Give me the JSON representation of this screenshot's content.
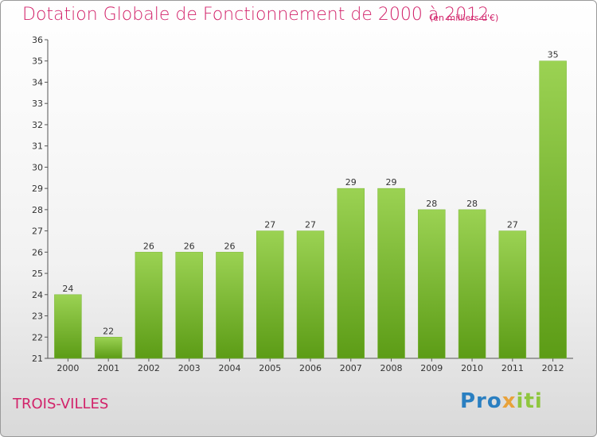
{
  "title": "Dotation Globale de Fonctionnement de 2000 à 2012",
  "subtitle": "(en milliers d'€)",
  "place": "TROIS-VILLES",
  "logo": "Proxiti",
  "colors": {
    "accent": "#d2236a",
    "bar_top": "#9bd253",
    "bar_bottom": "#5c9c16",
    "logo_blue": "#2a7fc1",
    "logo_orange": "#e8a23a",
    "logo_green": "#8fc63f"
  },
  "chart_data": {
    "type": "bar",
    "title": "Dotation Globale de Fonctionnement de 2000 à 2012",
    "subtitle": "(en milliers d'€)",
    "categories": [
      "2000",
      "2001",
      "2002",
      "2003",
      "2004",
      "2005",
      "2006",
      "2007",
      "2008",
      "2009",
      "2010",
      "2011",
      "2012"
    ],
    "values": [
      24,
      22,
      26,
      26,
      26,
      27,
      27,
      29,
      29,
      28,
      28,
      27,
      35
    ],
    "data_labels": [
      "24",
      "22",
      "26",
      "26",
      "26",
      "27",
      "27",
      "29",
      "29",
      "28",
      "28",
      "27",
      "35"
    ],
    "y_ticks": [
      "21",
      "22",
      "23",
      "24",
      "25",
      "26",
      "27",
      "28",
      "29",
      "30",
      "31",
      "32",
      "33",
      "34",
      "35",
      "36"
    ],
    "ylim": [
      21,
      36
    ],
    "xlabel": "",
    "ylabel": "",
    "grid": false,
    "legend": "none"
  }
}
